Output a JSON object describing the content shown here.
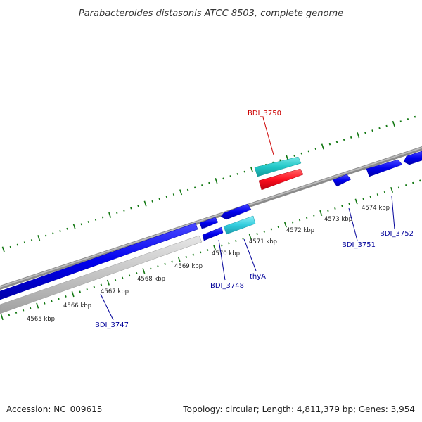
{
  "title": "Parabacteroides distasonis ATCC 8503, complete genome",
  "footer": {
    "accession": "Accession: NC_009615",
    "stats": "Topology: circular; Length: 4,811,379 bp; Genes: 3,954"
  },
  "scale_labels": [
    "4565 kbp",
    "4566 kbp",
    "4567 kbp",
    "4568 kbp",
    "4569 kbp",
    "4570 kbp",
    "4571 kbp",
    "4572 kbp",
    "4573 kbp",
    "4574 kbp"
  ],
  "gene_labels": {
    "bdi_3747": "BDI_3747",
    "bdi_3748": "BDI_3748",
    "thya": "thyA",
    "bdi_3750": "BDI_3750",
    "bdi_3751": "BDI_3751",
    "bdi_3752": "BDI_3752"
  },
  "colors": {
    "cds": "#0000ee",
    "rna": "#c0c0c0",
    "thya": "#33ccdd",
    "bdi_3750_cds": "#ff1020",
    "bdi_3750_gene": "#22c8c8",
    "backbone": "#888888",
    "ticks": "#117711",
    "label_blue": "#000099",
    "label_red": "#cc0000"
  }
}
